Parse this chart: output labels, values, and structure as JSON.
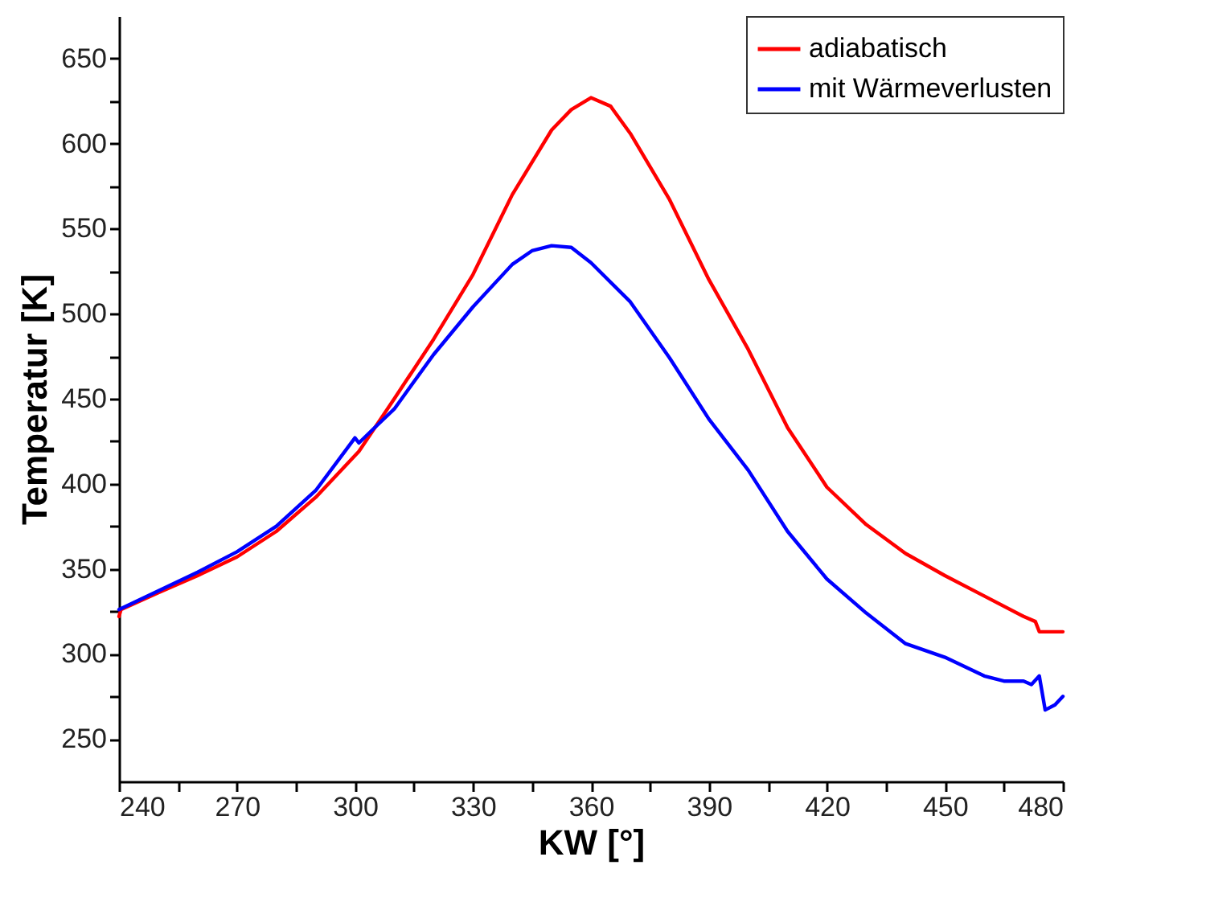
{
  "chart_data": {
    "type": "line",
    "xlabel": "KW [°]",
    "ylabel": "Temperatur [K]",
    "xlim": [
      240,
      480
    ],
    "ylim": [
      225,
      675
    ],
    "xticks": [
      240,
      {
        "value": 255,
        "label": null
      },
      270,
      {
        "value": 285,
        "label": null
      },
      300,
      {
        "value": 315,
        "label": null
      },
      330,
      {
        "value": 345,
        "label": null
      },
      360,
      {
        "value": 375,
        "label": null
      },
      390,
      {
        "value": 405,
        "label": null
      },
      420,
      {
        "value": 435,
        "label": null
      },
      450,
      {
        "value": 465,
        "label": null
      },
      480
    ],
    "yticks": [
      250,
      {
        "value": 275,
        "label": null
      },
      300,
      {
        "value": 325,
        "label": null
      },
      350,
      {
        "value": 375,
        "label": null
      },
      400,
      {
        "value": 425,
        "label": null
      },
      450,
      {
        "value": 475,
        "label": null
      },
      500,
      {
        "value": 525,
        "label": null
      },
      550,
      {
        "value": 575,
        "label": null
      },
      600,
      {
        "value": 625,
        "label": null
      },
      650
    ],
    "legend": "top right",
    "line_style": "solid",
    "marker": "none",
    "series": [
      {
        "name": "adiabatisch",
        "color": "#ff0000",
        "x": [
          240,
          240.5,
          250,
          260,
          270,
          280,
          290,
          301,
          310,
          320,
          330,
          340,
          350,
          355,
          360,
          365,
          370,
          380,
          390,
          400,
          410,
          420,
          430,
          440,
          450,
          460,
          470,
          473,
          474,
          480
        ],
        "values": [
          322,
          326,
          336,
          346,
          357,
          372,
          392,
          419,
          450,
          485,
          523,
          570,
          608,
          620,
          627,
          622,
          606,
          567,
          520,
          479,
          433,
          398,
          376,
          359,
          346,
          334,
          322,
          319,
          313,
          313
        ]
      },
      {
        "name": "mit Wärmeverlusten",
        "color": "#0000ff",
        "x": [
          240,
          250,
          260,
          270,
          280,
          290,
          300,
          301,
          305,
          310,
          320,
          330,
          340,
          345,
          350,
          355,
          360,
          370,
          380,
          390,
          400,
          410,
          420,
          430,
          440,
          450,
          460,
          465,
          470,
          472,
          474,
          475.5,
          478,
          480
        ],
        "values": [
          326,
          337,
          348,
          360,
          375,
          396,
          427,
          424,
          433,
          444,
          476,
          504,
          529,
          537,
          540,
          539,
          530,
          507,
          474,
          438,
          408,
          372,
          344,
          324,
          306,
          298,
          287,
          284,
          284,
          282,
          287,
          267,
          270,
          275
        ]
      }
    ]
  }
}
